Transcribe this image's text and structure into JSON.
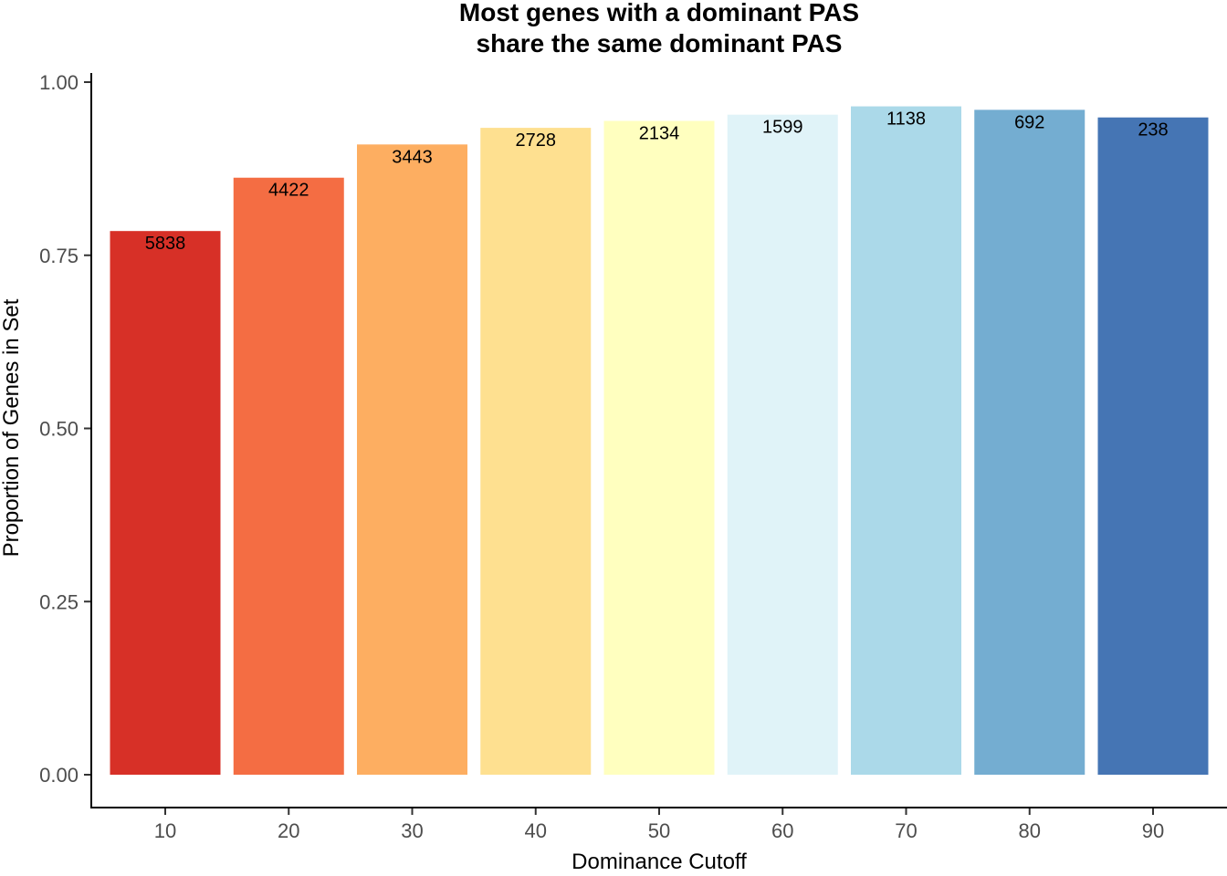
{
  "chart_data": {
    "type": "bar",
    "title_lines": [
      "Most genes with a dominant PAS",
      "share the same dominant PAS"
    ],
    "xlabel": "Dominance Cutoff",
    "ylabel": "Proportion of Genes in Set",
    "categories": [
      "10",
      "20",
      "30",
      "40",
      "50",
      "60",
      "70",
      "80",
      "90"
    ],
    "values": [
      0.785,
      0.862,
      0.91,
      0.934,
      0.944,
      0.953,
      0.965,
      0.96,
      0.949
    ],
    "data_labels": [
      "5838",
      "4422",
      "3443",
      "2728",
      "2134",
      "1599",
      "1138",
      "692",
      "238"
    ],
    "colors": [
      "#d73027",
      "#f46d43",
      "#fdae61",
      "#fee090",
      "#ffffbf",
      "#e0f3f8",
      "#abd9e9",
      "#74add1",
      "#4575b4"
    ],
    "ylim": [
      0,
      1
    ],
    "yticks": [
      0,
      0.25,
      0.5,
      0.75,
      1.0
    ],
    "ytick_labels": [
      "0.00",
      "0.25",
      "0.50",
      "0.75",
      "1.00"
    ],
    "grid": false,
    "legend": "none"
  }
}
